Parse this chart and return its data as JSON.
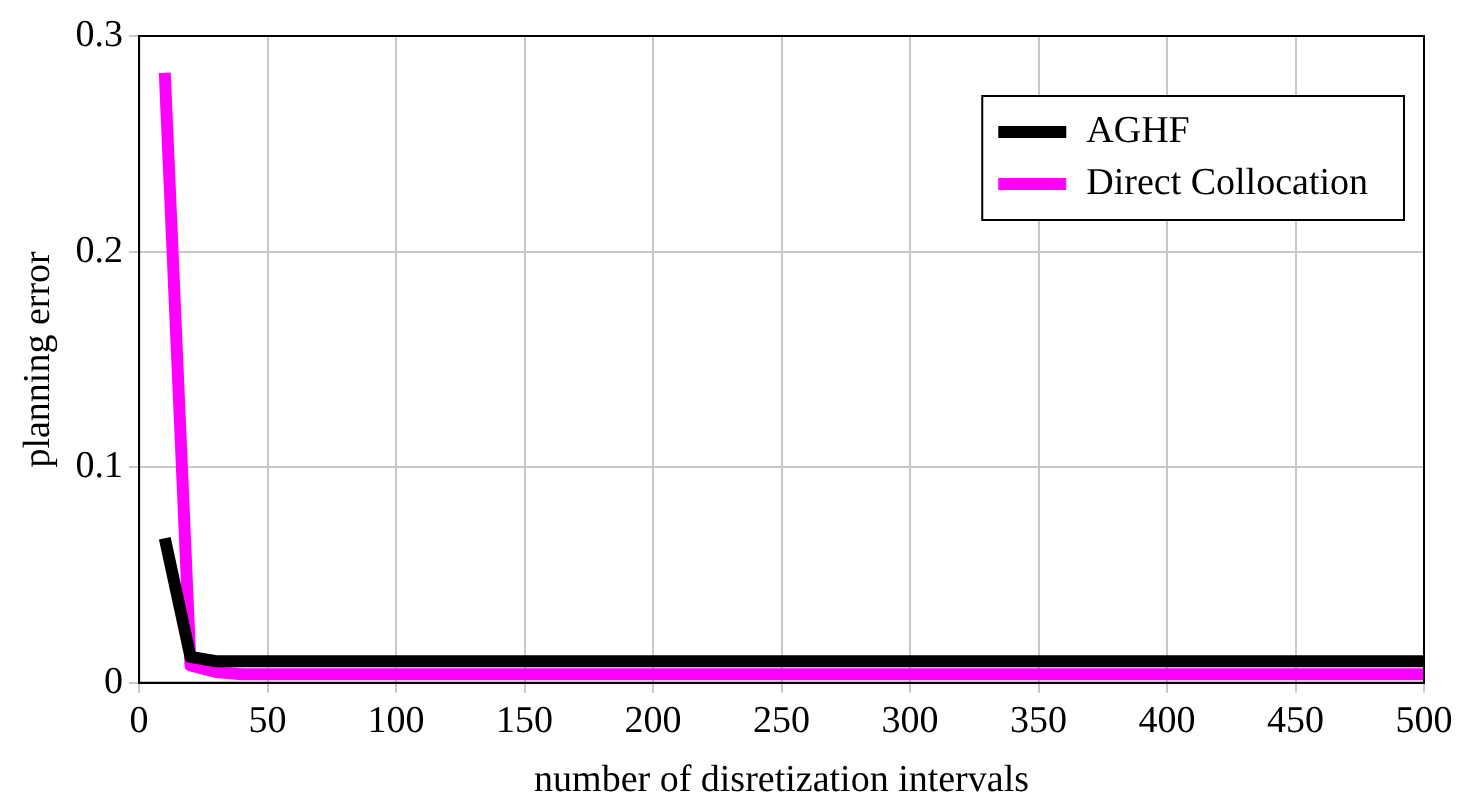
{
  "chart_data": {
    "type": "line",
    "xlabel": "number of disretization intervals",
    "ylabel": "planning error",
    "x": [
      10,
      20,
      30,
      40,
      50,
      100,
      150,
      200,
      250,
      300,
      350,
      400,
      450,
      500
    ],
    "series": [
      {
        "name": "AGHF",
        "color": "#000000",
        "values": [
          0.067,
          0.012,
          0.01,
          0.01,
          0.01,
          0.01,
          0.01,
          0.01,
          0.01,
          0.01,
          0.01,
          0.01,
          0.01,
          0.01
        ]
      },
      {
        "name": "Direct Collocation",
        "color": "#ff00ff",
        "values": [
          0.283,
          0.008,
          0.005,
          0.004,
          0.004,
          0.004,
          0.004,
          0.004,
          0.004,
          0.004,
          0.004,
          0.004,
          0.004,
          0.004
        ]
      }
    ],
    "xlim": [
      0,
      500
    ],
    "xticks": [
      0,
      50,
      100,
      150,
      200,
      250,
      300,
      350,
      400,
      450,
      500
    ],
    "ylim": [
      0,
      0.3
    ],
    "yticks": [
      0,
      0.1,
      0.2,
      0.3
    ],
    "grid": true,
    "legend": "top right",
    "marker": "none",
    "line_style": "solid"
  }
}
